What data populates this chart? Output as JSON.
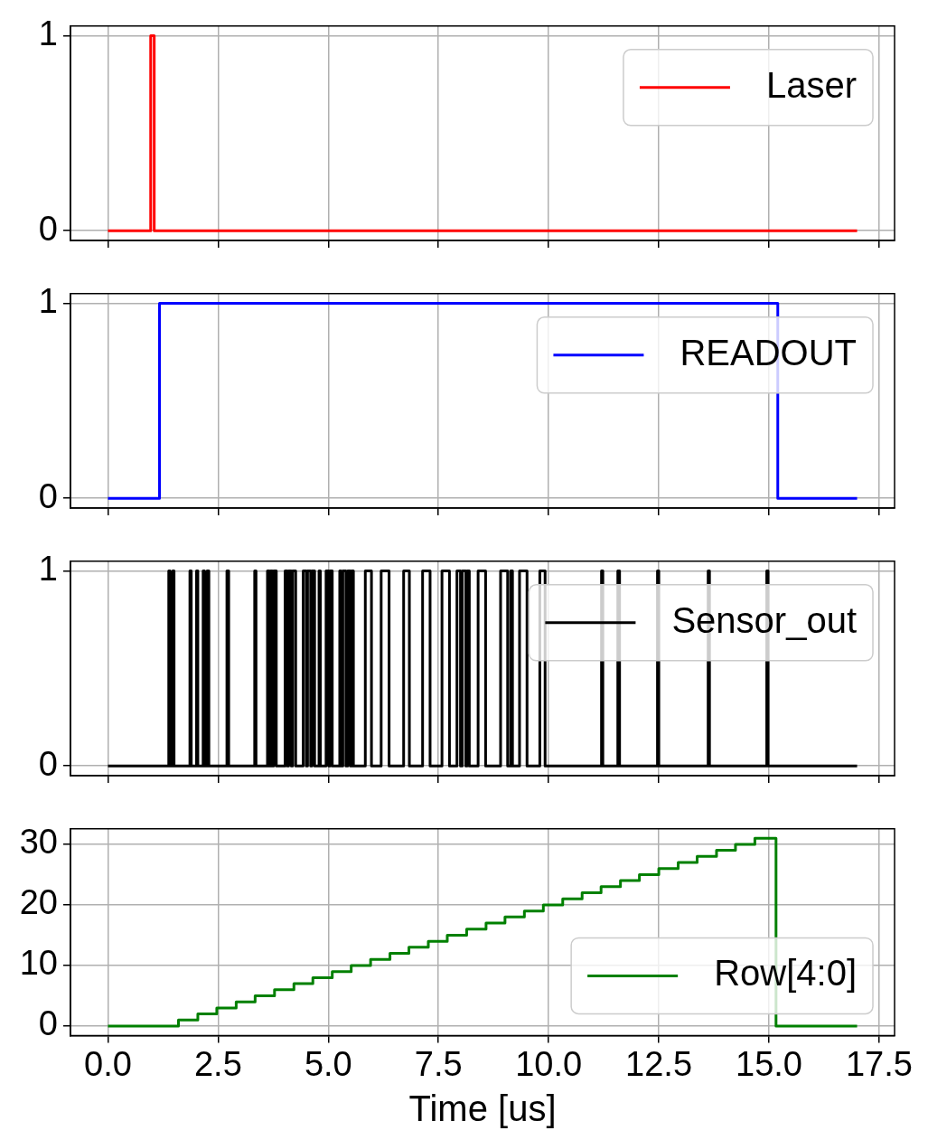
{
  "chart_data": [
    {
      "type": "step",
      "series": [
        {
          "name": "Laser",
          "color": "#ff0000",
          "x": [
            0,
            0.97,
            1.05,
            17
          ],
          "values": [
            0,
            1,
            0,
            0
          ]
        }
      ],
      "xlim": [
        -0.85,
        17.85
      ],
      "xticks": [
        0,
        2.5,
        5,
        7.5,
        10,
        12.5,
        15,
        17.5
      ],
      "ylim": [
        -0.05,
        1.05
      ],
      "yticks": [
        0,
        1
      ],
      "grid": true,
      "legend": "top right",
      "tick_labels": "y"
    },
    {
      "type": "step",
      "series": [
        {
          "name": "READOUT",
          "color": "#0000ff",
          "x": [
            0,
            1.17,
            15.2,
            17
          ],
          "values": [
            0,
            1,
            0,
            0
          ]
        }
      ],
      "xlim": [
        -0.85,
        17.85
      ],
      "xticks": [
        0,
        2.5,
        5,
        7.5,
        10,
        12.5,
        15,
        17.5
      ],
      "ylim": [
        -0.05,
        1.05
      ],
      "yticks": [
        0,
        1
      ],
      "grid": true,
      "legend": "top right",
      "tick_labels": "y"
    },
    {
      "type": "step",
      "series": [
        {
          "name": "Sensor_out",
          "color": "#000000",
          "x": [
            0,
            1.38,
            1.41,
            1.47,
            1.5,
            1.86,
            1.89,
            2.01,
            2.04,
            2.16,
            2.19,
            2.25,
            2.29,
            2.7,
            2.74,
            3.33,
            3.36,
            3.62,
            3.66,
            3.69,
            3.73,
            3.76,
            3.82,
            4.02,
            4.07,
            4.1,
            4.16,
            4.19,
            4.26,
            4.43,
            4.5,
            4.53,
            4.6,
            4.63,
            4.69,
            4.79,
            4.82,
            4.95,
            5.01,
            5.04,
            5.09,
            5.26,
            5.29,
            5.33,
            5.4,
            5.44,
            5.5,
            5.53,
            5.57,
            5.84,
            5.98,
            6.2,
            6.38,
            6.71,
            6.84,
            7.14,
            7.31,
            7.58,
            7.75,
            7.92,
            8.0,
            8.04,
            8.12,
            8.15,
            8.2,
            8.4,
            8.57,
            8.91,
            9.07,
            9.14,
            9.18,
            9.34,
            9.51,
            9.8,
            9.92,
            11.2,
            11.23,
            11.57,
            11.61,
            12.47,
            12.5,
            13.62,
            13.65,
            14.95,
            14.98,
            17
          ],
          "values": [
            0,
            1,
            0,
            1,
            0,
            1,
            0,
            1,
            0,
            1,
            0,
            1,
            0,
            1,
            0,
            1,
            0,
            1,
            0,
            1,
            0,
            1,
            0,
            1,
            0,
            1,
            0,
            1,
            0,
            1,
            0,
            1,
            0,
            1,
            0,
            1,
            0,
            1,
            0,
            1,
            0,
            1,
            0,
            1,
            0,
            1,
            0,
            1,
            0,
            1,
            0,
            1,
            0,
            1,
            0,
            1,
            0,
            1,
            0,
            1,
            0,
            1,
            0,
            1,
            0,
            1,
            0,
            1,
            0,
            1,
            0,
            1,
            0,
            1,
            0,
            1,
            0,
            1,
            0,
            1,
            0,
            1,
            0,
            1,
            0,
            0
          ]
        }
      ],
      "xlim": [
        -0.85,
        17.85
      ],
      "xticks": [
        0,
        2.5,
        5,
        7.5,
        10,
        12.5,
        15,
        17.5
      ],
      "ylim": [
        -0.05,
        1.05
      ],
      "yticks": [
        0,
        1
      ],
      "grid": true,
      "legend": "top right",
      "tick_labels": "y"
    },
    {
      "type": "step",
      "xlabel": "Time [us]",
      "series": [
        {
          "name": "Row[4:0]",
          "color": "#008000",
          "x": [
            0,
            1.6,
            2.04,
            2.47,
            2.91,
            3.34,
            3.78,
            4.22,
            4.65,
            5.09,
            5.52,
            5.96,
            6.4,
            6.83,
            7.27,
            7.7,
            8.14,
            8.58,
            9.01,
            9.45,
            9.88,
            10.32,
            10.76,
            11.19,
            11.63,
            12.06,
            12.5,
            12.94,
            13.37,
            13.81,
            14.24,
            14.68,
            15.16,
            17
          ],
          "values": [
            0,
            1,
            2,
            3,
            4,
            5,
            6,
            7,
            8,
            9,
            10,
            11,
            12,
            13,
            14,
            15,
            16,
            17,
            18,
            19,
            20,
            21,
            22,
            23,
            24,
            25,
            26,
            27,
            28,
            29,
            30,
            31,
            0,
            0
          ]
        }
      ],
      "xlim": [
        -0.85,
        17.85
      ],
      "xticks": [
        {
          "value": 0,
          "label": "0.0"
        },
        {
          "value": 2.5,
          "label": "2.5"
        },
        {
          "value": 5,
          "label": "5.0"
        },
        {
          "value": 7.5,
          "label": "7.5"
        },
        {
          "value": 10,
          "label": "10.0"
        },
        {
          "value": 12.5,
          "label": "12.5"
        },
        {
          "value": 15,
          "label": "15.0"
        },
        {
          "value": 17.5,
          "label": "17.5"
        }
      ],
      "ylim": [
        -1.55,
        32.55
      ],
      "yticks": [
        0,
        10,
        20,
        30
      ],
      "grid": true,
      "legend": "bottom right"
    }
  ]
}
